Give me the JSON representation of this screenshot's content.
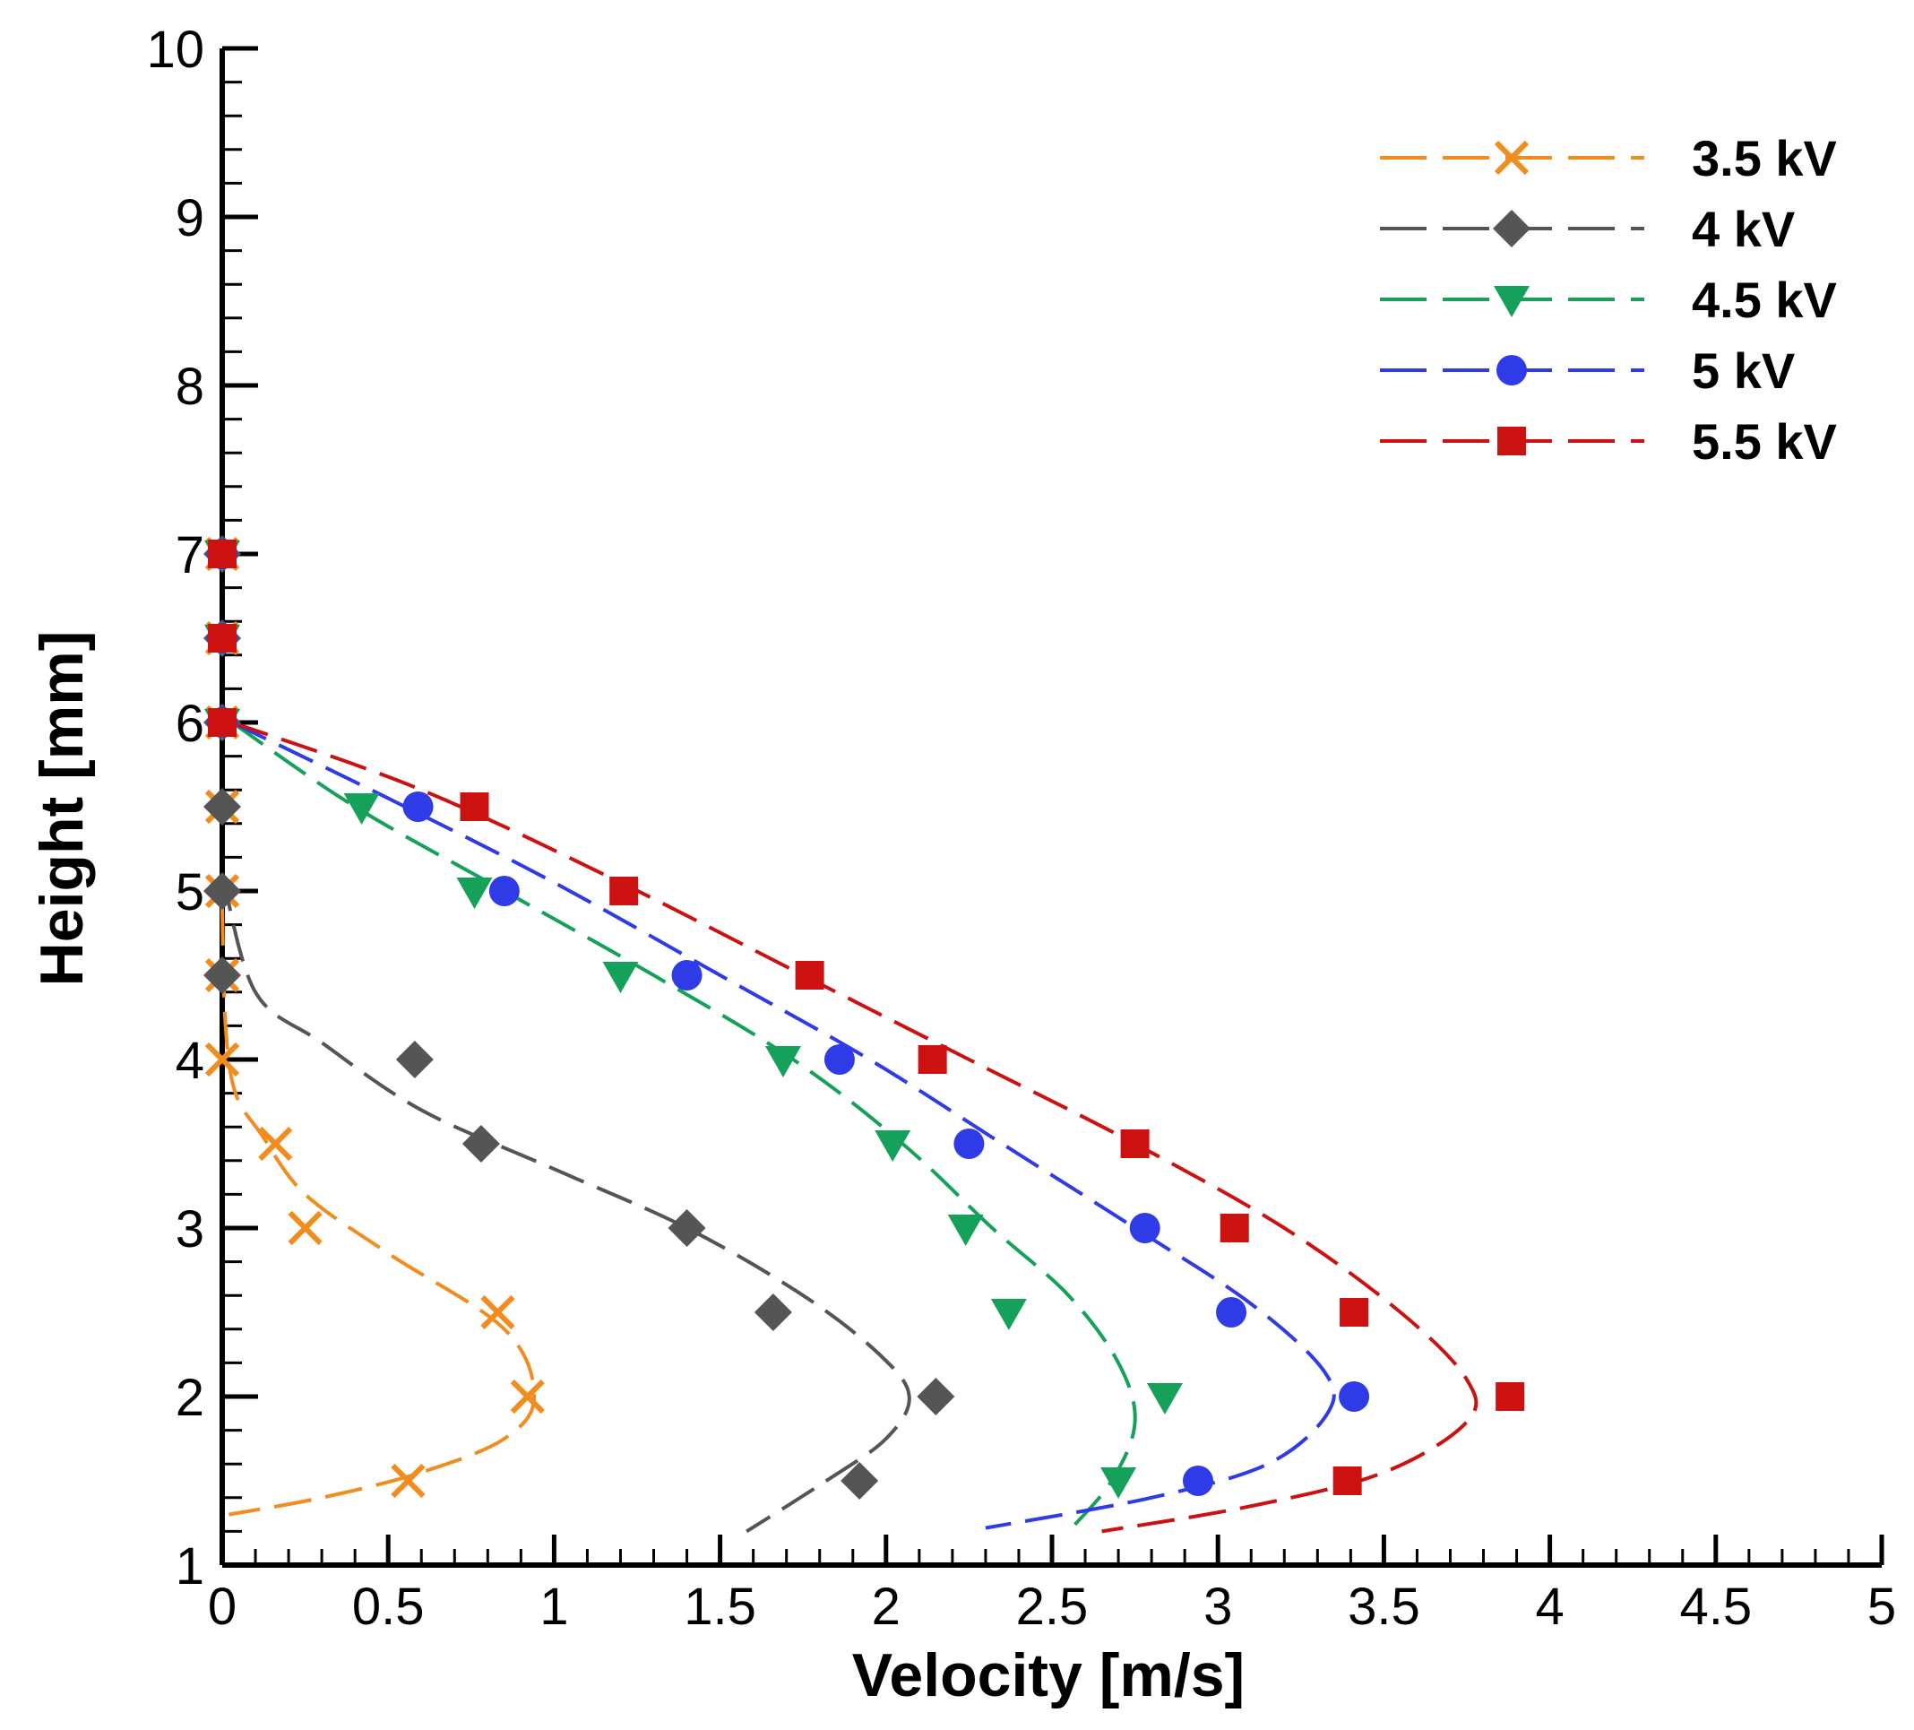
{
  "chart_data": {
    "type": "line",
    "title": "",
    "xlabel": "Velocity [m/s]",
    "ylabel": "Height [mm]",
    "xlim": [
      0,
      5
    ],
    "ylim": [
      1,
      10
    ],
    "x_ticks": [
      "0",
      "0.5",
      "1",
      "1.5",
      "2",
      "2.5",
      "3",
      "3.5",
      "4",
      "4.5",
      "5"
    ],
    "y_ticks": [
      "1",
      "2",
      "3",
      "4",
      "5",
      "6",
      "7",
      "8",
      "9",
      "10"
    ],
    "grid": false,
    "legend_position": "top-right",
    "series": [
      {
        "name": "3.5 kV",
        "color": "#F28C1E",
        "marker": "x",
        "markers": [
          [
            0,
            7
          ],
          [
            0,
            6.5
          ],
          [
            0,
            6
          ],
          [
            0,
            5.5
          ],
          [
            0,
            5
          ],
          [
            0,
            4.5
          ],
          [
            0,
            4
          ],
          [
            0.16,
            3.5
          ],
          [
            0.25,
            3
          ],
          [
            0.83,
            2.5
          ],
          [
            0.92,
            2
          ],
          [
            0.56,
            1.5
          ]
        ],
        "curve": [
          [
            0,
            4.9
          ],
          [
            0.01,
            4.2
          ],
          [
            0.04,
            3.8
          ],
          [
            0.12,
            3.55
          ],
          [
            0.25,
            3.2
          ],
          [
            0.5,
            2.85
          ],
          [
            0.85,
            2.4
          ],
          [
            0.94,
            2.0
          ],
          [
            0.85,
            1.75
          ],
          [
            0.6,
            1.55
          ],
          [
            0.3,
            1.4
          ],
          [
            0.02,
            1.3
          ]
        ]
      },
      {
        "name": "4 kV",
        "color": "#555555",
        "marker": "diamond",
        "markers": [
          [
            0,
            7
          ],
          [
            0,
            6.5
          ],
          [
            0,
            6
          ],
          [
            0,
            5.5
          ],
          [
            0,
            5
          ],
          [
            0,
            4.5
          ],
          [
            0.58,
            4
          ],
          [
            0.78,
            3.5
          ],
          [
            1.4,
            3
          ],
          [
            1.66,
            2.5
          ],
          [
            2.15,
            2
          ],
          [
            1.92,
            1.5
          ]
        ],
        "curve": [
          [
            0,
            5.1
          ],
          [
            0.1,
            4.4
          ],
          [
            0.3,
            4.1
          ],
          [
            0.6,
            3.7
          ],
          [
            1.0,
            3.35
          ],
          [
            1.4,
            3.0
          ],
          [
            1.75,
            2.6
          ],
          [
            1.98,
            2.25
          ],
          [
            2.07,
            2.0
          ],
          [
            2.0,
            1.75
          ],
          [
            1.82,
            1.5
          ],
          [
            1.58,
            1.2
          ]
        ]
      },
      {
        "name": "4.5 kV",
        "color": "#16A15A",
        "marker": "triangle-down",
        "markers": [
          [
            0,
            7
          ],
          [
            0,
            6.5
          ],
          [
            0,
            6
          ],
          [
            0.42,
            5.5
          ],
          [
            0.76,
            5
          ],
          [
            1.2,
            4.5
          ],
          [
            1.69,
            4
          ],
          [
            2.02,
            3.5
          ],
          [
            2.24,
            3
          ],
          [
            2.37,
            2.5
          ],
          [
            2.84,
            2
          ],
          [
            2.7,
            1.5
          ]
        ],
        "curve": [
          [
            0.03,
            6.0
          ],
          [
            0.4,
            5.5
          ],
          [
            0.85,
            5.0
          ],
          [
            1.3,
            4.5
          ],
          [
            1.72,
            4.0
          ],
          [
            2.05,
            3.5
          ],
          [
            2.32,
            3.0
          ],
          [
            2.55,
            2.6
          ],
          [
            2.7,
            2.2
          ],
          [
            2.75,
            1.85
          ],
          [
            2.68,
            1.5
          ],
          [
            2.55,
            1.2
          ]
        ]
      },
      {
        "name": "5 kV",
        "color": "#2F3BE6",
        "marker": "circle",
        "markers": [
          [
            0,
            7
          ],
          [
            0,
            6.5
          ],
          [
            0,
            6
          ],
          [
            0.59,
            5.5
          ],
          [
            0.85,
            5
          ],
          [
            1.4,
            4.5
          ],
          [
            1.86,
            4
          ],
          [
            2.25,
            3.5
          ],
          [
            2.78,
            3
          ],
          [
            3.04,
            2.5
          ],
          [
            3.41,
            2
          ],
          [
            2.94,
            1.5
          ]
        ],
        "curve": [
          [
            0.03,
            6.0
          ],
          [
            0.5,
            5.55
          ],
          [
            1.0,
            5.05
          ],
          [
            1.5,
            4.5
          ],
          [
            1.95,
            4.0
          ],
          [
            2.35,
            3.5
          ],
          [
            2.75,
            3.0
          ],
          [
            3.1,
            2.55
          ],
          [
            3.32,
            2.15
          ],
          [
            3.33,
            1.9
          ],
          [
            3.15,
            1.6
          ],
          [
            2.8,
            1.4
          ],
          [
            2.3,
            1.22
          ]
        ]
      },
      {
        "name": "5.5 kV",
        "color": "#CC1111",
        "marker": "square",
        "markers": [
          [
            0,
            7
          ],
          [
            0,
            6.5
          ],
          [
            0,
            6
          ],
          [
            0.76,
            5.5
          ],
          [
            1.21,
            5
          ],
          [
            1.77,
            4.5
          ],
          [
            2.14,
            4
          ],
          [
            2.75,
            3.5
          ],
          [
            3.05,
            3
          ],
          [
            3.41,
            2.5
          ],
          [
            3.88,
            2
          ],
          [
            3.39,
            1.5
          ]
        ],
        "curve": [
          [
            0.03,
            6.0
          ],
          [
            0.6,
            5.6
          ],
          [
            1.2,
            5.05
          ],
          [
            1.75,
            4.5
          ],
          [
            2.25,
            4.0
          ],
          [
            2.75,
            3.5
          ],
          [
            3.2,
            3.0
          ],
          [
            3.55,
            2.5
          ],
          [
            3.75,
            2.1
          ],
          [
            3.75,
            1.85
          ],
          [
            3.5,
            1.55
          ],
          [
            3.1,
            1.35
          ],
          [
            2.65,
            1.2
          ]
        ]
      }
    ]
  }
}
